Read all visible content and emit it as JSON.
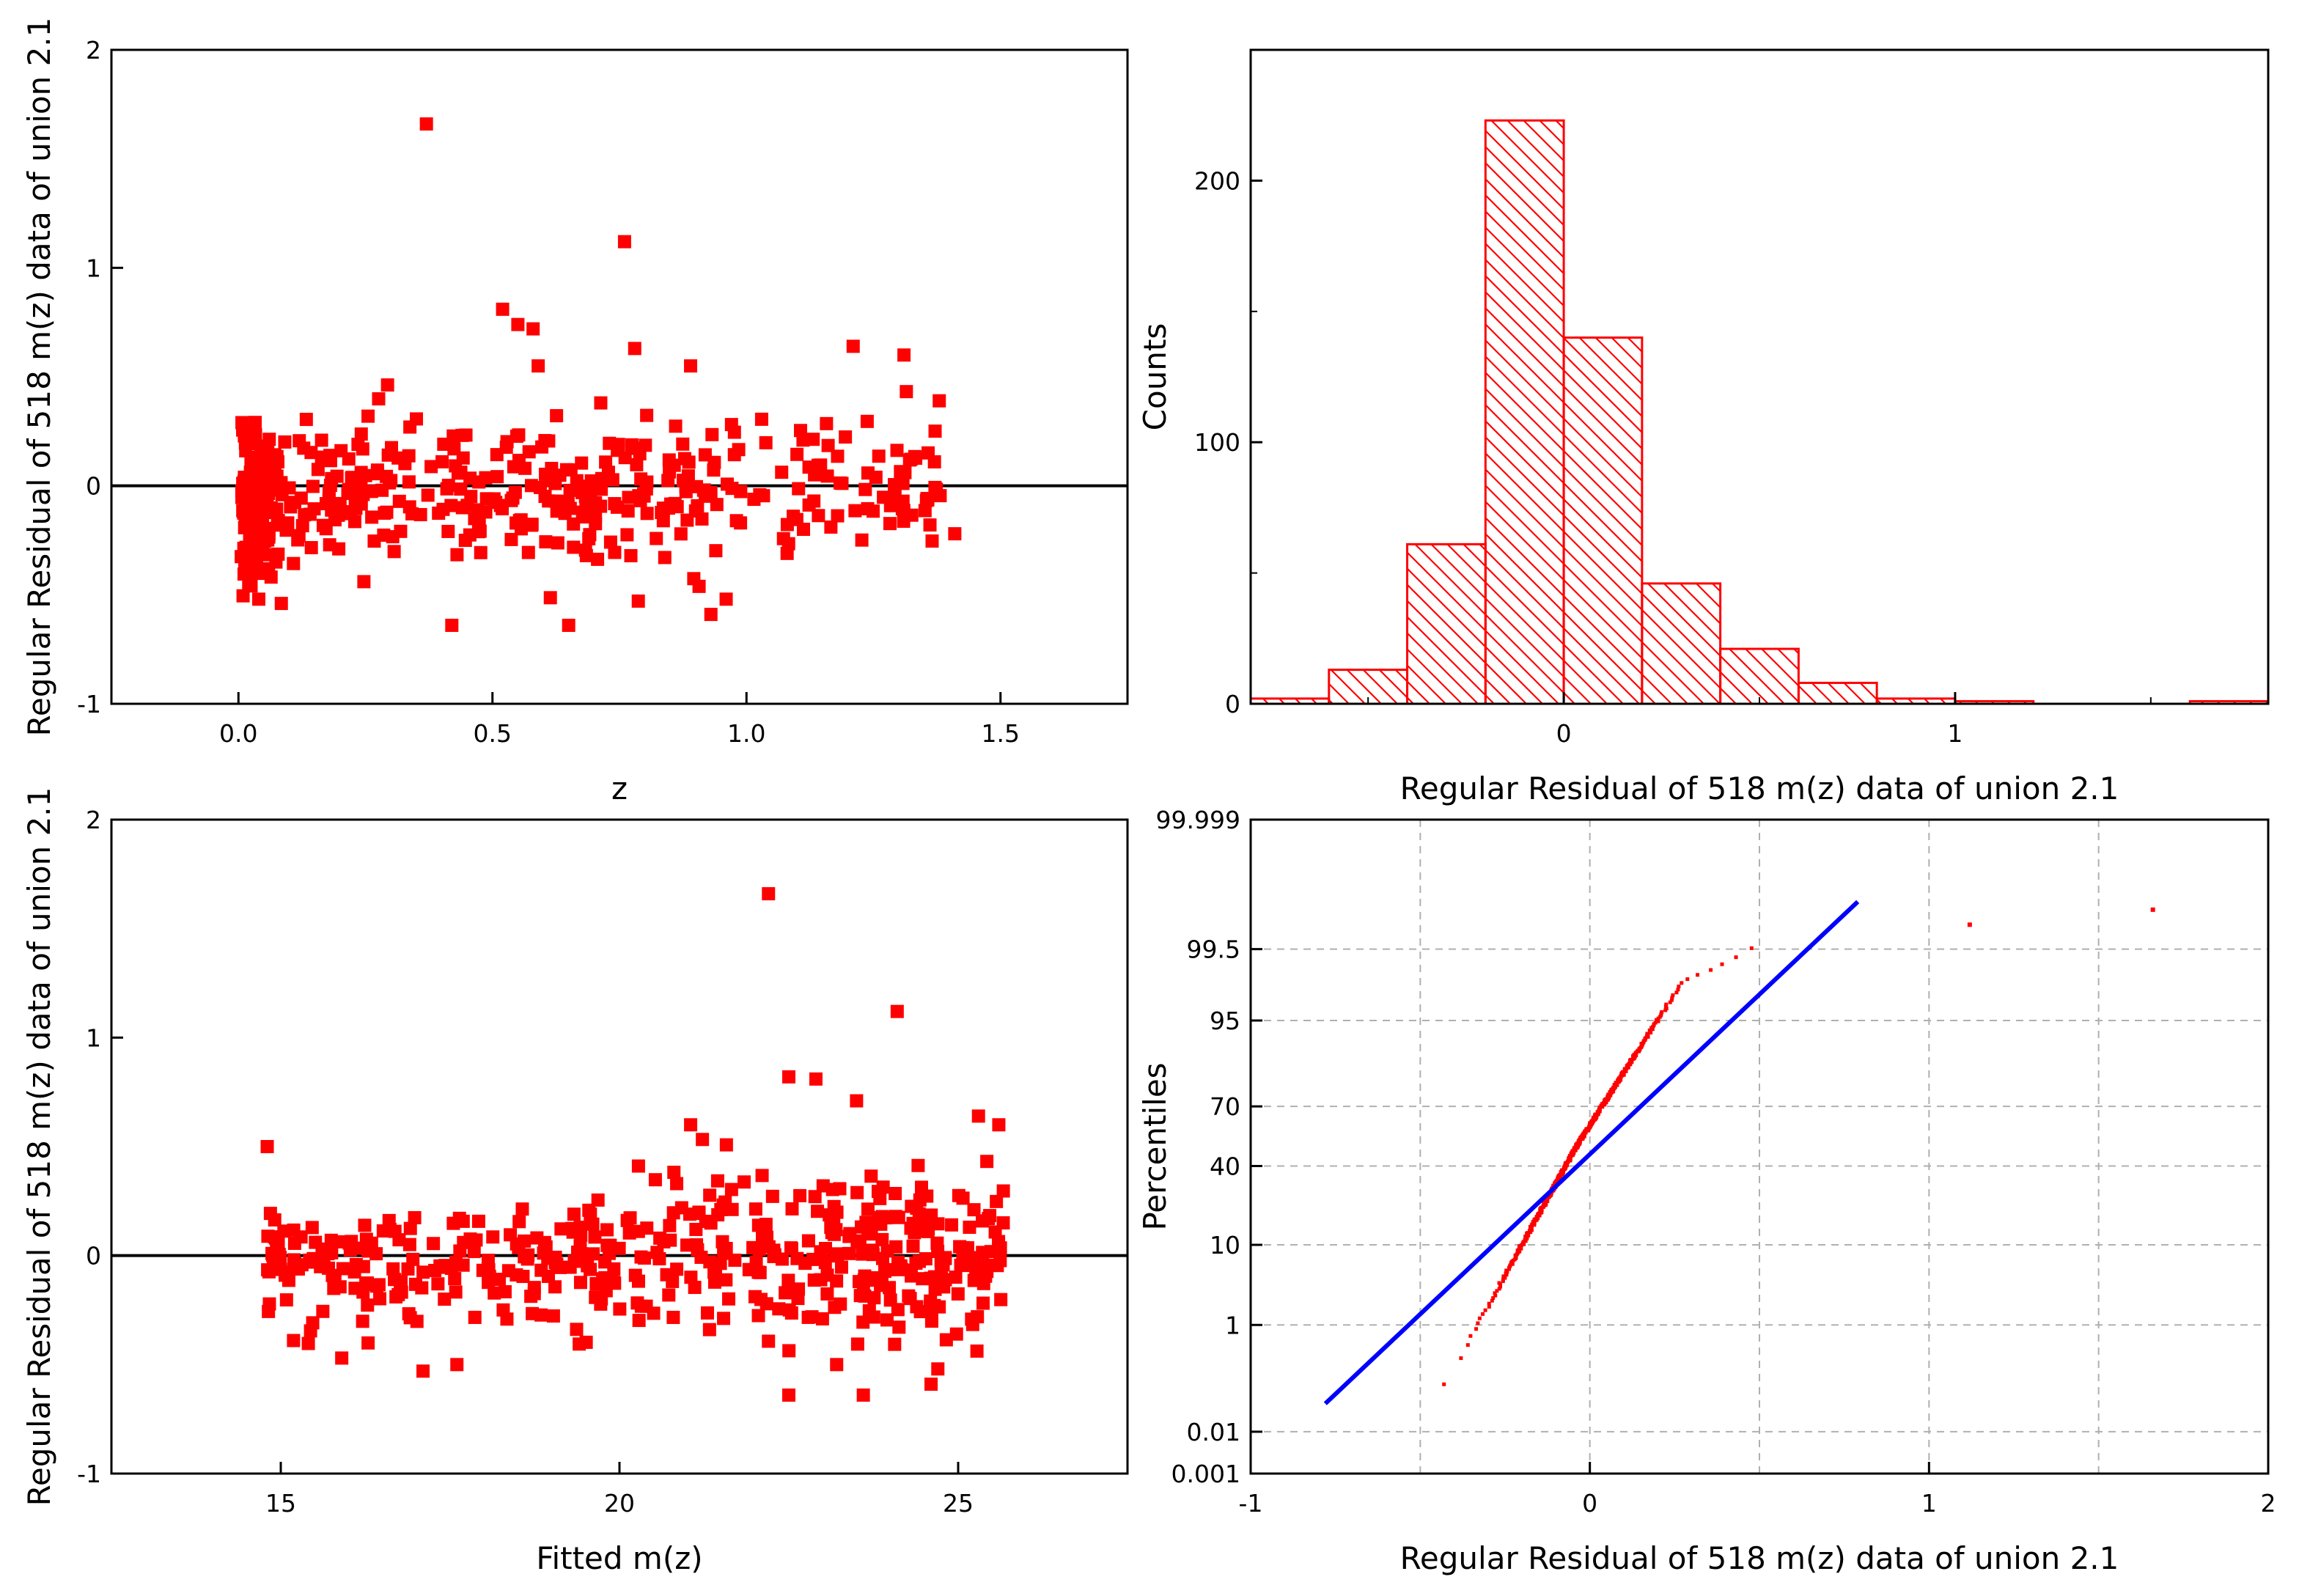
{
  "colors": {
    "marker": "#ff0000",
    "fit_line": "#0000ff",
    "grid": "#b0b0b0",
    "axis": "#000000"
  },
  "chart_data": [
    {
      "id": "residual-vs-z",
      "type": "scatter",
      "title": "",
      "xlabel": "z",
      "ylabel": "Regular Residual of 518 m(z) data of union 2.1",
      "xlim": [
        -0.25,
        1.75
      ],
      "ylim": [
        -1,
        2
      ],
      "xticks": [
        0,
        0.5,
        1,
        1.5
      ],
      "xtick_labels": [
        "0.0",
        "0.5",
        "1.0",
        "1.5"
      ],
      "yticks": [
        -1,
        0,
        1,
        2
      ],
      "ytick_labels": [
        "-1",
        "0",
        "1",
        "2"
      ],
      "reference_line_y": 0,
      "n_points": 518,
      "seed": 17,
      "highlighted_points": [
        {
          "x": 0.37,
          "y": 1.66
        },
        {
          "x": 0.76,
          "y": 1.12
        },
        {
          "x": 0.52,
          "y": 0.81
        },
        {
          "x": 0.55,
          "y": 0.74
        },
        {
          "x": 0.58,
          "y": 0.72
        },
        {
          "x": 0.78,
          "y": 0.63
        },
        {
          "x": 1.21,
          "y": 0.64
        },
        {
          "x": 1.31,
          "y": 0.6
        },
        {
          "x": 0.59,
          "y": 0.55
        },
        {
          "x": 0.89,
          "y": 0.55
        },
        {
          "x": 0.42,
          "y": -0.64
        },
        {
          "x": 0.65,
          "y": -0.64
        },
        {
          "x": 0.93,
          "y": -0.59
        },
        {
          "x": 0.96,
          "y": -0.52
        },
        {
          "x": 0.04,
          "y": -0.52
        },
        {
          "x": 1.41,
          "y": -0.22
        },
        {
          "x": 1.08,
          "y": -0.31
        },
        {
          "x": 1.37,
          "y": 0.11
        }
      ]
    },
    {
      "id": "residual-histogram",
      "type": "bar",
      "title": "",
      "xlabel": "Regular Residual of 518 m(z) data of union 2.1",
      "ylabel": "Counts",
      "xlim": [
        -0.8,
        1.8
      ],
      "ylim": [
        0,
        250
      ],
      "xticks": [
        0,
        1
      ],
      "xtick_labels": [
        "0",
        "1"
      ],
      "yticks": [
        0,
        100,
        200
      ],
      "ytick_labels": [
        "0",
        "100",
        "200"
      ],
      "bin_edges": [
        -0.8,
        -0.6,
        -0.4,
        -0.2,
        0.0,
        0.2,
        0.4,
        0.6,
        0.8,
        1.0,
        1.2,
        1.4,
        1.6,
        1.8
      ],
      "values": [
        2,
        13,
        61,
        223,
        140,
        46,
        21,
        8,
        2,
        1,
        0,
        0,
        1
      ],
      "fill": "hatched"
    },
    {
      "id": "residual-vs-fitted",
      "type": "scatter",
      "title": "",
      "xlabel": "Fitted m(z)",
      "ylabel": "Regular Residual of 518 m(z) data of union 2.1",
      "xlim": [
        12.5,
        27.5
      ],
      "ylim": [
        -1,
        2
      ],
      "xticks": [
        15,
        20,
        25
      ],
      "xtick_labels": [
        "15",
        "20",
        "25"
      ],
      "yticks": [
        -1,
        0,
        1,
        2
      ],
      "ytick_labels": [
        "-1",
        "0",
        "1",
        "2"
      ],
      "reference_line_y": 0,
      "n_points": 518,
      "seed": 29,
      "highlighted_points": [
        {
          "x": 22.2,
          "y": 1.66
        },
        {
          "x": 24.1,
          "y": 1.12
        },
        {
          "x": 22.9,
          "y": 0.81
        },
        {
          "x": 22.5,
          "y": 0.82
        },
        {
          "x": 23.5,
          "y": 0.71
        },
        {
          "x": 25.3,
          "y": 0.64
        },
        {
          "x": 25.6,
          "y": 0.6
        },
        {
          "x": 14.8,
          "y": 0.5
        },
        {
          "x": 22.5,
          "y": -0.64
        },
        {
          "x": 23.6,
          "y": -0.64
        },
        {
          "x": 24.6,
          "y": -0.59
        },
        {
          "x": 17.1,
          "y": -0.53
        },
        {
          "x": 24.7,
          "y": -0.52
        },
        {
          "x": 17.6,
          "y": -0.5
        },
        {
          "x": 15.9,
          "y": -0.47
        }
      ]
    },
    {
      "id": "normal-probability",
      "type": "scatter",
      "title": "",
      "xlabel": "Regular Residual of 518 m(z) data of union 2.1",
      "ylabel": "Percentiles",
      "xlim": [
        -1,
        2
      ],
      "xticks": [
        -1,
        0,
        1,
        2
      ],
      "xtick_labels": [
        "-1",
        "0",
        "1",
        "2"
      ],
      "ytick_labels": [
        "0.001",
        "0.01",
        "1",
        "10",
        "40",
        "70",
        "95",
        "99.5",
        "99.999"
      ],
      "ytick_percent": [
        0.001,
        0.01,
        1,
        10,
        40,
        70,
        95,
        99.5,
        99.999
      ],
      "fit_line": {
        "x": [
          -0.78,
          0.79
        ],
        "percentile": [
          0.04,
          99.93
        ]
      },
      "n_points": 518,
      "outliers": [
        {
          "x": 1.12,
          "percentile": 99.81
        },
        {
          "x": 1.66,
          "percentile": 99.9
        }
      ]
    }
  ]
}
